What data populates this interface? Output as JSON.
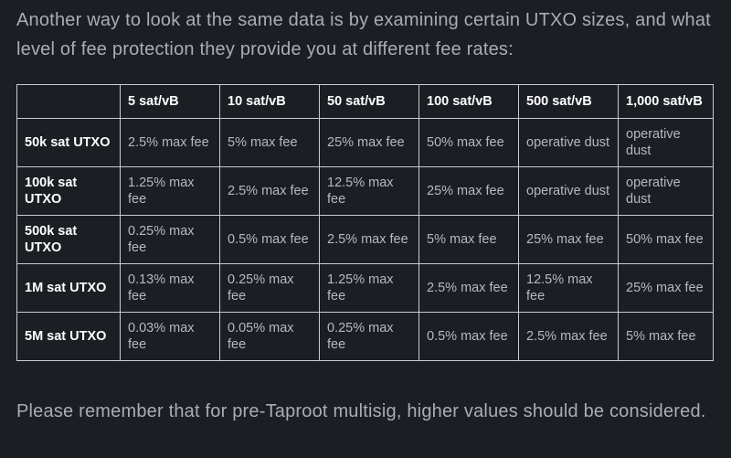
{
  "intro_text": "Another way to look at the same data is by examining certain UTXO sizes, and what level of fee protection they provide you at different fee rates:",
  "table": {
    "corner": "",
    "headers": [
      "5 sat/vB",
      "10 sat/vB",
      "50 sat/vB",
      "100 sat/vB",
      "500 sat/vB",
      "1,000 sat/vB"
    ],
    "rows": [
      {
        "label": "50k sat UTXO",
        "cells": [
          "2.5% max fee",
          "5% max fee",
          "25% max fee",
          "50% max fee",
          "operative dust",
          "operative dust"
        ]
      },
      {
        "label": "100k sat UTXO",
        "cells": [
          "1.25% max fee",
          "2.5% max fee",
          "12.5% max fee",
          "25% max fee",
          "operative dust",
          "operative dust"
        ]
      },
      {
        "label": "500k sat UTXO",
        "cells": [
          "0.25% max fee",
          "0.5% max fee",
          "2.5% max fee",
          "5% max fee",
          "25% max fee",
          "50% max fee"
        ]
      },
      {
        "label": "1M sat UTXO",
        "cells": [
          "0.13% max fee",
          "0.25% max fee",
          "1.25% max fee",
          "2.5% max fee",
          "12.5% max fee",
          "25% max fee"
        ]
      },
      {
        "label": "5M sat UTXO",
        "cells": [
          "0.03% max fee",
          "0.05% max fee",
          "0.25% max fee",
          "0.5% max fee",
          "2.5% max fee",
          "5% max fee"
        ]
      }
    ]
  },
  "outro_text": "Please remember that for pre-Taproot multisig, higher values should be considered.",
  "colors": {
    "background": "#1b1e23",
    "body_text": "#a9adb4",
    "header_text": "#ffffff",
    "cell_text": "#b6bac0",
    "border": "#c9ccd1"
  }
}
